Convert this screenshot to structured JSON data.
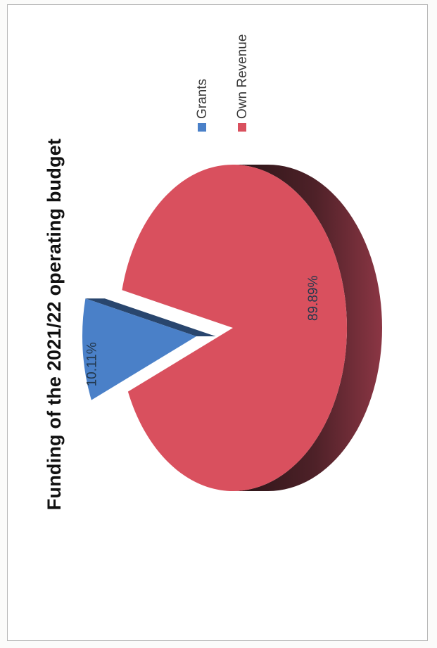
{
  "chart_data": {
    "type": "pie",
    "title": "Funding of the 2021/22 operating budget",
    "series": [
      {
        "name": "Grants",
        "value": 10.11,
        "label": "10.11%",
        "color": "#4a80c8"
      },
      {
        "name": "Own Revenue",
        "value": 89.89,
        "label": "89.89%",
        "color": "#d9505e"
      }
    ],
    "legend_position": "right",
    "style": "3d-exploded"
  }
}
